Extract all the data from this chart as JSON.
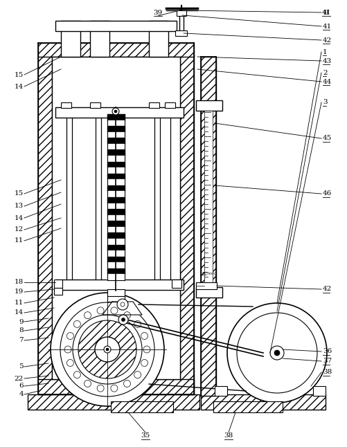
{
  "bg_color": "#ffffff",
  "figsize": [
    5.02,
    6.46
  ],
  "dpi": 100,
  "line_color": "#000000"
}
